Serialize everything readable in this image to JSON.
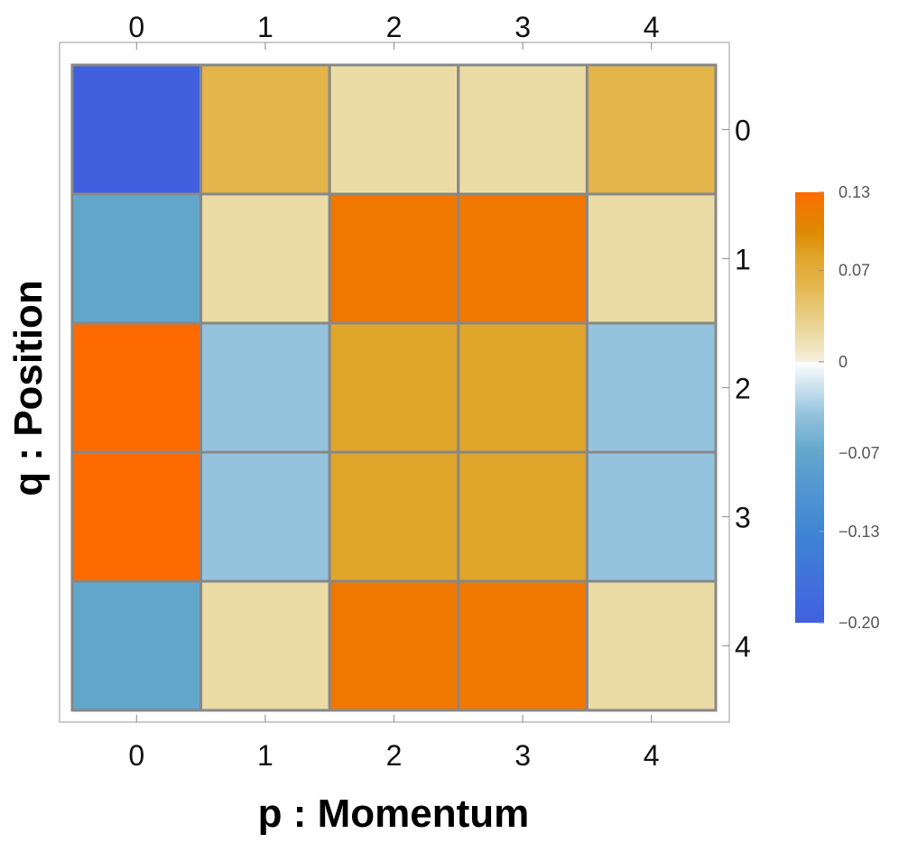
{
  "chart_data": {
    "type": "heatmap",
    "title": "",
    "xlabel": "p : Momentum",
    "ylabel": "q : Position",
    "x_ticks": [
      "0",
      "1",
      "2",
      "3",
      "4"
    ],
    "y_ticks": [
      "0",
      "1",
      "2",
      "3",
      "4"
    ],
    "x_ticks_also_on_top": true,
    "y_ticks_on_right": true,
    "row_index": "q",
    "col_index": "p",
    "values": [
      [
        -0.2,
        0.06,
        0.02,
        0.02,
        0.06
      ],
      [
        -0.07,
        0.02,
        0.12,
        0.12,
        0.02
      ],
      [
        0.13,
        -0.04,
        0.08,
        0.08,
        -0.04
      ],
      [
        0.13,
        -0.04,
        0.08,
        0.08,
        -0.04
      ],
      [
        -0.07,
        0.02,
        0.12,
        0.12,
        0.02
      ]
    ],
    "colorbar": {
      "min": -0.2,
      "max": 0.13,
      "ticks": [
        {
          "value": 0.13,
          "label": "0.13"
        },
        {
          "value": 0.07,
          "label": "0.07"
        },
        {
          "value": 0,
          "label": "0"
        },
        {
          "value": -0.07,
          "label": "−0.07"
        },
        {
          "value": -0.13,
          "label": "−0.13"
        },
        {
          "value": -0.2,
          "label": "−0.20"
        }
      ]
    },
    "colors": {
      "cell_border": "#888888",
      "frame": "#bbbbbb",
      "negative_stops": [
        {
          "value": -0.2,
          "color": "#4060e0"
        },
        {
          "value": -0.13,
          "color": "#3f85d4"
        },
        {
          "value": -0.07,
          "color": "#62a6cc"
        },
        {
          "value": -0.04,
          "color": "#94c3dd"
        },
        {
          "value": 0.0,
          "color": "#ffffff"
        }
      ],
      "positive_stops": [
        {
          "value": 0.0,
          "color": "#f5efe0"
        },
        {
          "value": 0.02,
          "color": "#ebdca6"
        },
        {
          "value": 0.06,
          "color": "#e3b54b"
        },
        {
          "value": 0.08,
          "color": "#e0a52b"
        },
        {
          "value": 0.1,
          "color": "#dd8a00"
        },
        {
          "value": 0.12,
          "color": "#f07800"
        },
        {
          "value": 0.13,
          "color": "#ff6a00"
        }
      ]
    },
    "grid": false,
    "legend": "colorbar-right"
  }
}
